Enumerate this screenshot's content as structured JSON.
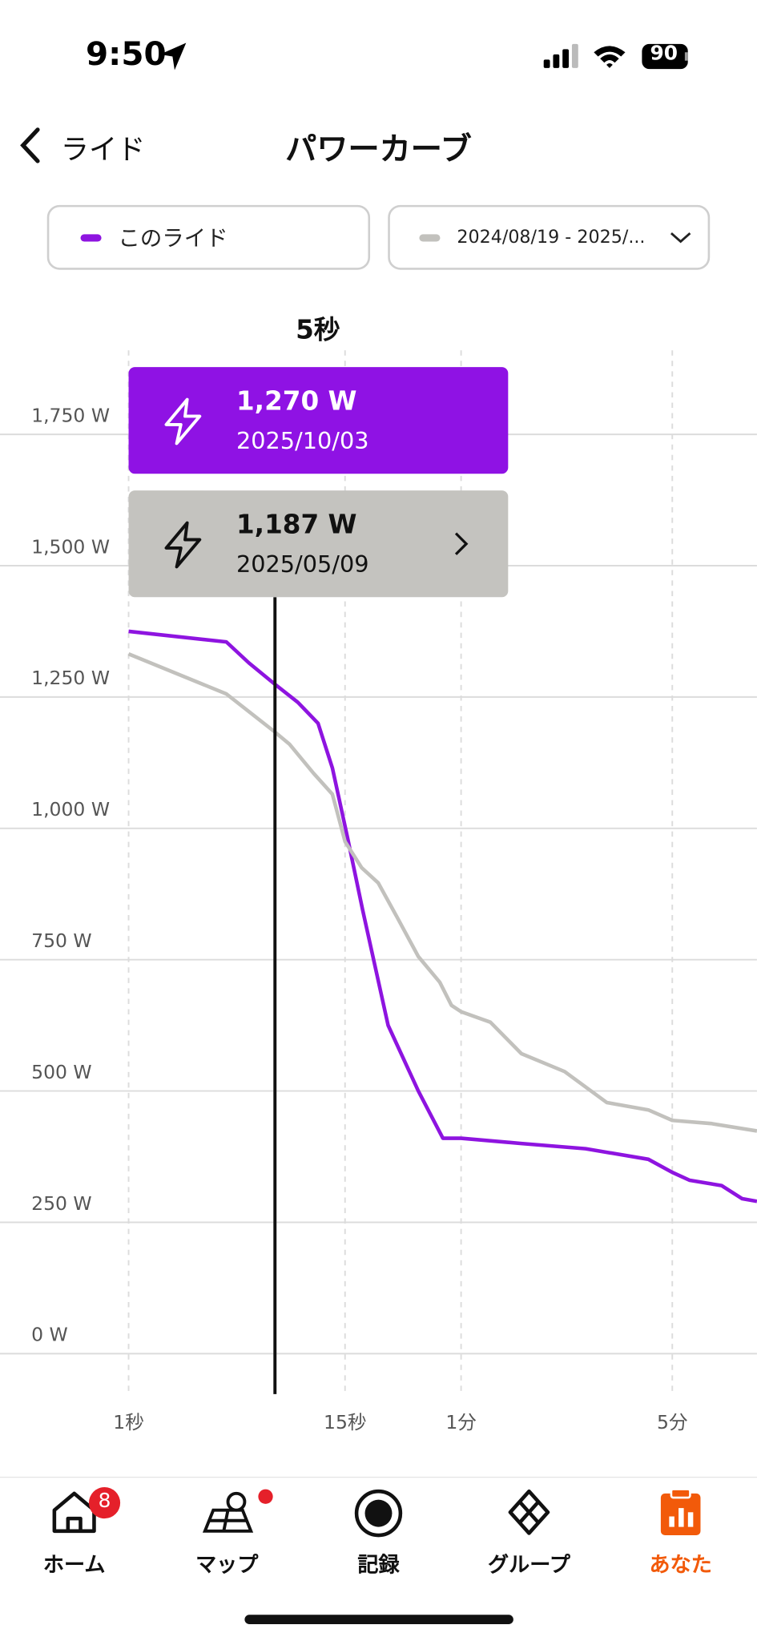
{
  "status_bar": {
    "time": "9:50",
    "battery": "90"
  },
  "header": {
    "back": "ライド",
    "title": "パワーカーブ"
  },
  "tooltip": {
    "cursor": "5秒",
    "items": [
      {
        "value": "1,270 W",
        "date": "2025/10/03"
      },
      {
        "value": "1,187 W",
        "date": "2025/05/09"
      }
    ]
  },
  "chart_data": {
    "type": "line",
    "xscale": "log",
    "xlim": [
      1,
      600
    ],
    "xticks": [
      {
        "value": 1,
        "label": "1秒"
      },
      {
        "value": 15,
        "label": "15秒"
      },
      {
        "value": 60,
        "label": "1分"
      },
      {
        "value": 300,
        "label": "5分"
      }
    ],
    "ylim": [
      -75,
      1910
    ],
    "yticks": [
      {
        "value": 0,
        "label": "0 W"
      },
      {
        "value": 250,
        "label": "250 W"
      },
      {
        "value": 500,
        "label": "500 W"
      },
      {
        "value": 750,
        "label": "750 W"
      },
      {
        "value": 1000,
        "label": "1,000 W"
      },
      {
        "value": 1250,
        "label": "1,250 W"
      },
      {
        "value": 1500,
        "label": "1,500 W"
      },
      {
        "value": 1750,
        "label": "1,750 W"
      }
    ],
    "grid": true,
    "series": [
      {
        "name": "このライド",
        "color": "#8e14e0",
        "x": [
          1,
          3.4,
          4.5,
          6.2,
          8.3,
          10.7,
          12.8,
          15.4,
          18.5,
          25.1,
          36,
          48.3,
          60,
          95,
          155,
          250,
          300,
          346,
          449,
          532,
          600
        ],
        "values": [
          1375,
          1355,
          1315,
          1275,
          1240,
          1200,
          1115,
          985,
          845,
          625,
          500,
          410,
          410,
          400,
          390,
          370,
          345,
          330,
          320,
          295,
          290
        ]
      },
      {
        "name": "2024/08/19 - 2025/...",
        "color": "#c2c1bd",
        "x": [
          1,
          3.4,
          6.2,
          7.5,
          10.1,
          12.8,
          15,
          18.3,
          22.3,
          28,
          36,
          46.5,
          53.5,
          60,
          75,
          95,
          132,
          182,
          250,
          300,
          412,
          600
        ],
        "values": [
          1332,
          1256,
          1184,
          1160,
          1105,
          1065,
          975,
          925,
          896,
          830,
          756,
          707,
          663,
          651,
          631,
          571,
          537,
          478,
          464,
          444,
          438,
          424
        ]
      }
    ]
  },
  "tab_bar": {
    "badge": "8",
    "items": [
      "ホーム",
      "マップ",
      "記録",
      "グループ",
      "あなた"
    ]
  }
}
